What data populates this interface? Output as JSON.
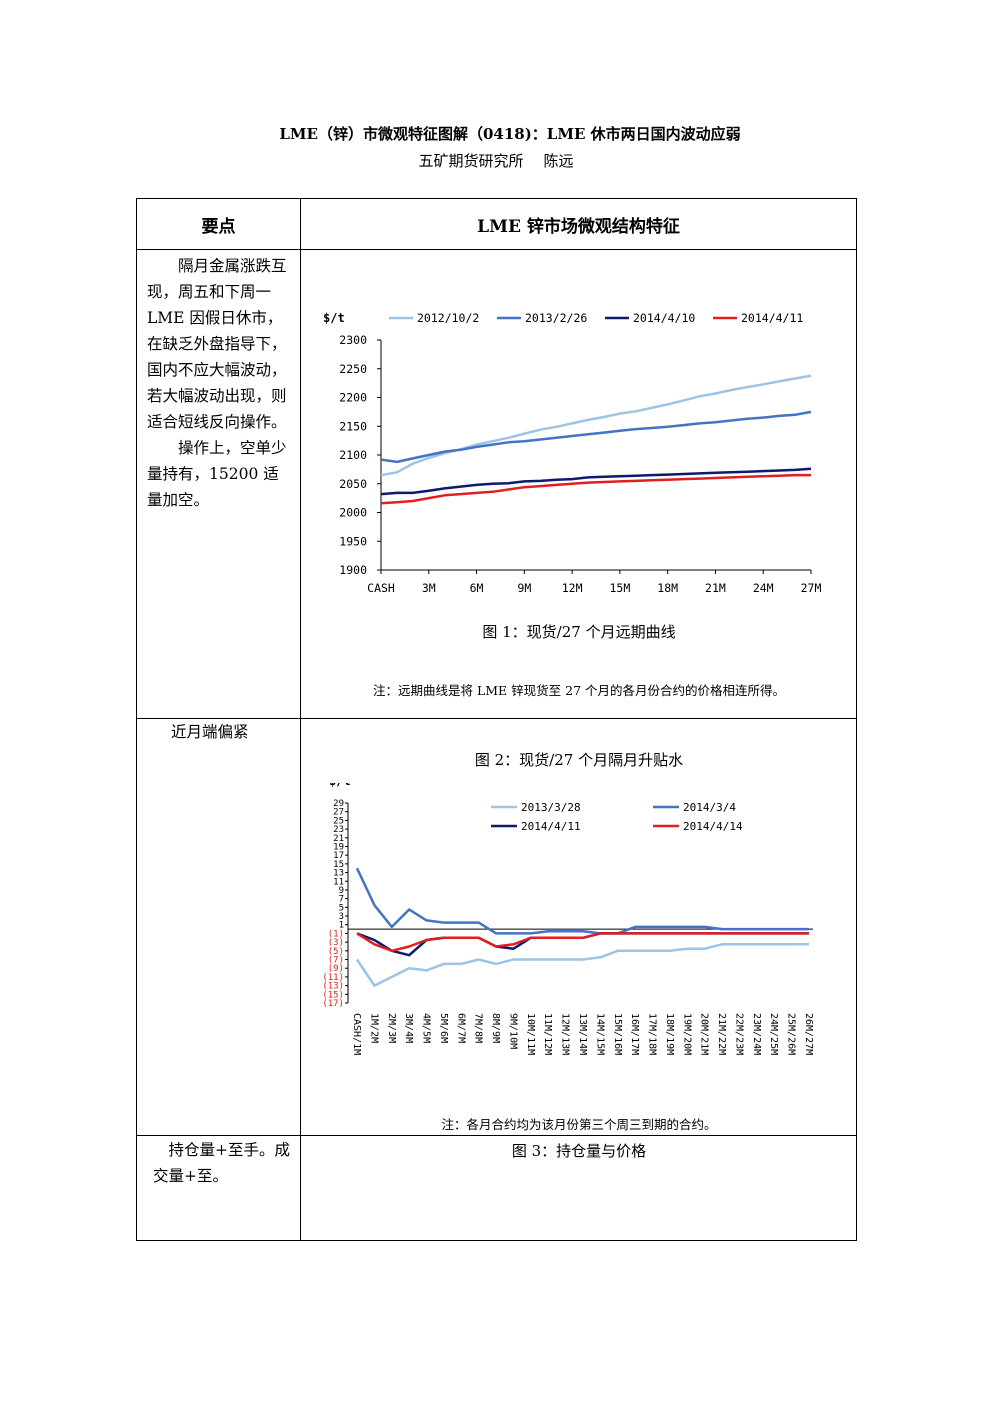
{
  "title": "LME（锌）市微观特征图解（0418)：LME 休市两日国内波动应弱",
  "author": "五矿期货研究所",
  "author_name": "陈远",
  "table": {
    "col1_header": "要点",
    "col2_header": "LME 锌市场微观结构特征",
    "row1_left_p1": "隔月金属涨跌互现，周五和下周一LME 因假日休市，在缺乏外盘指导下，国内不应大幅波动，若大幅波动出现，则适合短线反向操作。",
    "row1_left_p2": "操作上，空单少量持有，15200 适量加空。",
    "row2_left": "近月端偏紧",
    "row3_left_p1": "持仓量+至手。成交量+至。"
  },
  "figure1": {
    "caption": "图 1：现货/27 个月远期曲线",
    "note": "注：远期曲线是将 LME 锌现货至 27 个月的各月份合约的价格相连所得。"
  },
  "figure2": {
    "caption": "图 2：现货/27 个月隔月升贴水",
    "note": "注：各月合约均为该月份第三个周三到期的合约。"
  },
  "figure3": {
    "caption": "图 3：持仓量与价格"
  },
  "chart_data": [
    {
      "type": "line",
      "ylabel": "$/t",
      "ylim": [
        1900,
        2300
      ],
      "yticks": [
        1900,
        1950,
        2000,
        2050,
        2100,
        2150,
        2200,
        2250,
        2300
      ],
      "xtick_labels": [
        "CASH",
        "3M",
        "6M",
        "9M",
        "12M",
        "15M",
        "18M",
        "21M",
        "24M",
        "27M"
      ],
      "legend_position": "top",
      "grid": false,
      "x": [
        0,
        1,
        2,
        3,
        4,
        5,
        6,
        7,
        8,
        9,
        10,
        11,
        12,
        13,
        14,
        15,
        16,
        17,
        18,
        19,
        20,
        21,
        22,
        23,
        24,
        25,
        26,
        27
      ],
      "series": [
        {
          "name": "2012/10/2",
          "color": "#9dc3e6",
          "values": [
            2065,
            2070,
            2085,
            2095,
            2103,
            2110,
            2118,
            2124,
            2130,
            2137,
            2144,
            2149,
            2155,
            2161,
            2166,
            2172,
            2176,
            2182,
            2188,
            2195,
            2202,
            2207,
            2213,
            2218,
            2223,
            2228,
            2233,
            2238
          ]
        },
        {
          "name": "2013/2/26",
          "color": "#4472c4",
          "values": [
            2092,
            2088,
            2094,
            2100,
            2106,
            2109,
            2114,
            2118,
            2122,
            2124,
            2127,
            2130,
            2133,
            2136,
            2139,
            2142,
            2145,
            2147,
            2149,
            2152,
            2155,
            2157,
            2160,
            2163,
            2165,
            2168,
            2170,
            2175
          ]
        },
        {
          "name": "2014/4/10",
          "color": "#0d1a6e",
          "values": [
            2032,
            2034,
            2034,
            2038,
            2042,
            2045,
            2048,
            2050,
            2051,
            2054,
            2055,
            2057,
            2058,
            2061,
            2062,
            2063,
            2064,
            2065,
            2066,
            2067,
            2068,
            2069,
            2070,
            2071,
            2072,
            2073,
            2074,
            2076
          ]
        },
        {
          "name": "2014/4/11",
          "color": "#e02020",
          "values": [
            2016,
            2018,
            2020,
            2025,
            2030,
            2032,
            2034,
            2036,
            2040,
            2044,
            2046,
            2048,
            2050,
            2052,
            2053,
            2054,
            2055,
            2056,
            2057,
            2058,
            2059,
            2060,
            2061,
            2062,
            2063,
            2064,
            2065,
            2065
          ]
        }
      ]
    },
    {
      "type": "line",
      "ylabel": "$/t",
      "ylim": [
        -17,
        29
      ],
      "ytick_labels": [
        "29",
        "27",
        "25",
        "23",
        "21",
        "19",
        "17",
        "15",
        "13",
        "11",
        "9",
        "7",
        "5",
        "3",
        "1",
        "(1)",
        "(3)",
        "(5)",
        "(7)",
        "(9)",
        "(11)",
        "(13)",
        "(15)",
        "(17)"
      ],
      "ytick_values": [
        29,
        27,
        25,
        23,
        21,
        19,
        17,
        15,
        13,
        11,
        9,
        7,
        5,
        3,
        1,
        -1,
        -3,
        -5,
        -7,
        -9,
        -11,
        -13,
        -15,
        -17
      ],
      "negative_tick_color": "#e02020",
      "categories": [
        "CASH/1M",
        "1M/2M",
        "2M/3M",
        "3M/4M",
        "4M/5M",
        "5M/6M",
        "6M/7M",
        "7M/8M",
        "8M/9M",
        "9M/10M",
        "10M/11M",
        "11M/12M",
        "12M/13M",
        "13M/14M",
        "14M/15M",
        "15M/16M",
        "16M/17M",
        "17M/18M",
        "18M/19M",
        "19M/20M",
        "20M/21M",
        "21M/22M",
        "22M/23M",
        "23M/24M",
        "24M/25M",
        "25M/26M",
        "26M/27M"
      ],
      "legend_position": "top",
      "grid": false,
      "series": [
        {
          "name": "2013/3/28",
          "color": "#9dc3e6",
          "values": [
            -7,
            -13,
            -11,
            -9,
            -9.5,
            -8,
            -8,
            -7,
            -8,
            -7,
            -7,
            -7,
            -7,
            -7,
            -6.5,
            -5,
            -5,
            -5,
            -5,
            -4.5,
            -4.5,
            -3.5,
            -3.5,
            -3.5,
            -3.5,
            -3.5,
            -3.5
          ]
        },
        {
          "name": "2014/3/4",
          "color": "#4472c4",
          "values": [
            14,
            5.5,
            0.5,
            4.5,
            2,
            1.5,
            1.5,
            1.5,
            -1,
            -1,
            -1,
            -0.5,
            -0.5,
            -0.5,
            -1,
            -1,
            0.5,
            0.5,
            0.5,
            0.5,
            0.5,
            0,
            0,
            0,
            0,
            0,
            0
          ]
        },
        {
          "name": "2014/4/11",
          "color": "#0d1a6e",
          "values": [
            -1,
            -2.5,
            -5,
            -6,
            -2.5,
            -2,
            -2,
            -2,
            -4,
            -4.5,
            -2,
            -2,
            -2,
            -2,
            -1,
            -1,
            -1,
            -1,
            -1,
            -1,
            -1,
            -1,
            -1,
            -1,
            -1,
            -1,
            -1
          ]
        },
        {
          "name": "2014/4/14",
          "color": "#e02020",
          "values": [
            -1,
            -3.5,
            -5,
            -4,
            -2.5,
            -2,
            -2,
            -2,
            -4,
            -3.5,
            -2,
            -2,
            -2,
            -2,
            -1,
            -1,
            -1,
            -1,
            -1,
            -1,
            -1,
            -1,
            -1,
            -1,
            -1,
            -1,
            -1
          ]
        }
      ]
    }
  ]
}
